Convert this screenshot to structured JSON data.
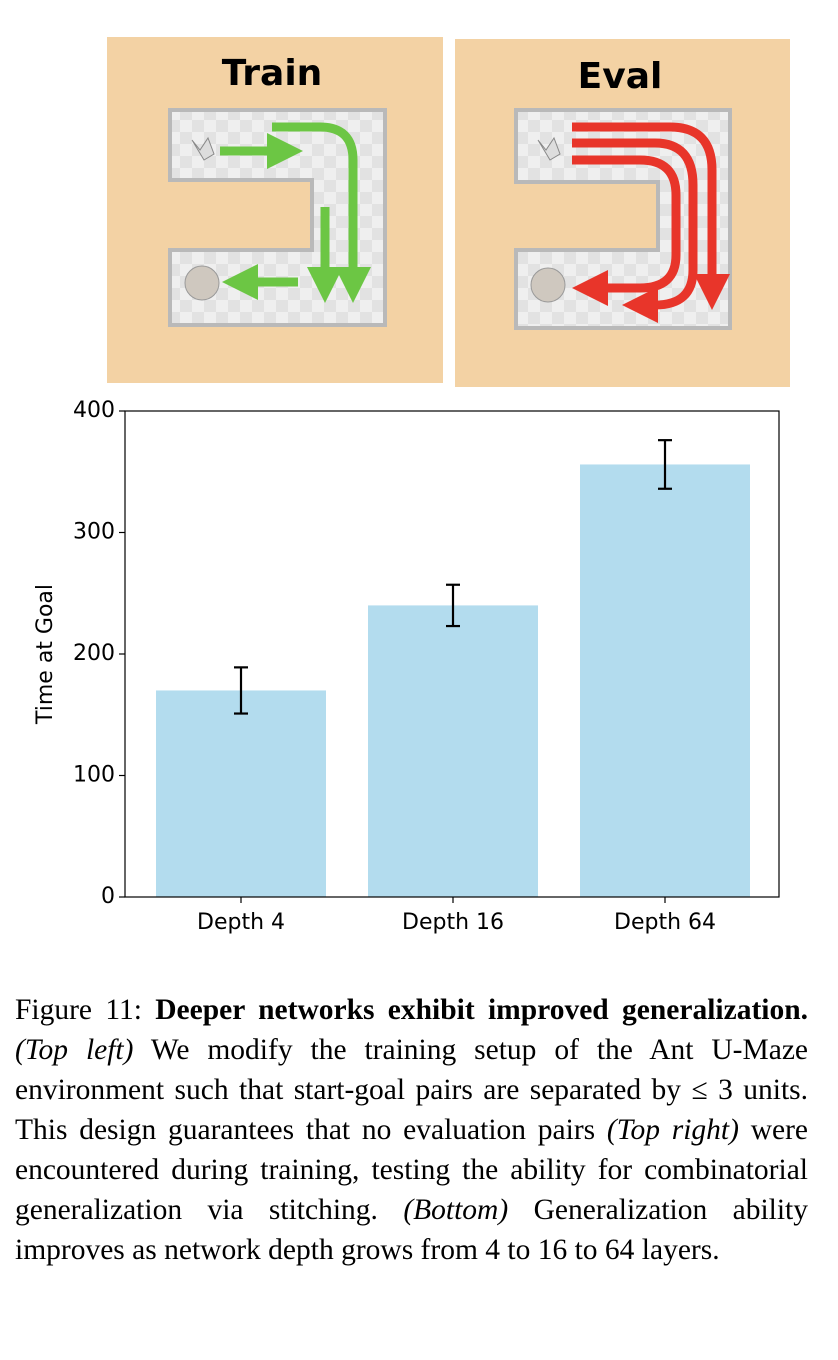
{
  "panels": [
    {
      "label": "Train"
    },
    {
      "label": "Eval"
    }
  ],
  "chart_data": {
    "type": "bar",
    "ylabel": "Time at Goal",
    "categories": [
      "Depth 4",
      "Depth 16",
      "Depth 64"
    ],
    "values": [
      170,
      240,
      356
    ],
    "errors": [
      19,
      17,
      20
    ],
    "color": "#b3dcee",
    "error_color": "#000000",
    "ylim": [
      0,
      400
    ],
    "yticks": [
      0,
      100,
      200,
      300,
      400
    ],
    "grid": false
  },
  "caption": {
    "label": "Figure 11:",
    "title": "Deeper networks exhibit improved generalization.",
    "parts": [
      {
        "text": "(Top left)",
        "italic": true
      },
      {
        "text": " We modify the training setup of the Ant U-Maze environment such that start-goal pairs are separated by ≤ 3 units. This design guarantees that no evaluation pairs ",
        "italic": false
      },
      {
        "text": "(Top right)",
        "italic": true
      },
      {
        "text": " were encountered during training, testing the ability for combinatorial generalization via stitching. ",
        "italic": false
      },
      {
        "text": "(Bottom)",
        "italic": true
      },
      {
        "text": " Generalization ability improves as network depth grows from 4 to 16 to 64 layers.",
        "italic": false
      }
    ]
  }
}
